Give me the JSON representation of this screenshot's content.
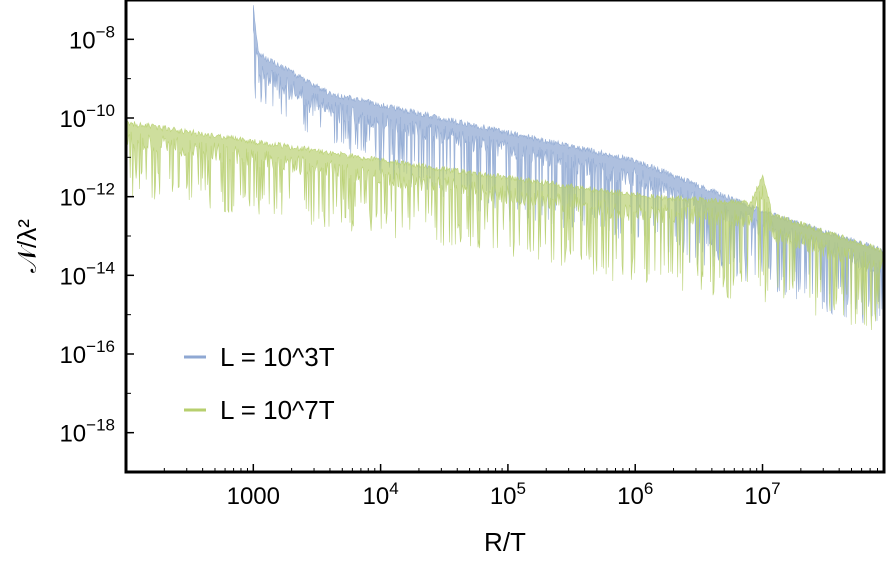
{
  "chart_data": {
    "type": "area",
    "xlabel": "R/T",
    "ylabel": "𝒩/λ²",
    "xscale": "log",
    "yscale": "log",
    "xlim": [
      100,
      90000000
    ],
    "ylim": [
      1e-19,
      1e-07
    ],
    "grid": false,
    "legend_position": "bottom-left",
    "x_ticks": [
      {
        "value": 1000,
        "label": "1000"
      },
      {
        "value": 10000,
        "base": "10",
        "exp": "4"
      },
      {
        "value": 100000,
        "base": "10",
        "exp": "5"
      },
      {
        "value": 1000000,
        "base": "10",
        "exp": "6"
      },
      {
        "value": 10000000,
        "base": "10",
        "exp": "7"
      }
    ],
    "y_ticks": [
      {
        "value": 1e-08,
        "base": "10",
        "exp": "−8"
      },
      {
        "value": 1e-10,
        "base": "10",
        "exp": "−10"
      },
      {
        "value": 1e-12,
        "base": "10",
        "exp": "−12"
      },
      {
        "value": 1e-14,
        "base": "10",
        "exp": "−14"
      },
      {
        "value": 1e-16,
        "base": "10",
        "exp": "−16"
      },
      {
        "value": 1e-18,
        "base": "10",
        "exp": "−18"
      }
    ],
    "series": [
      {
        "name": "L = 10^3T",
        "color": "#8fa8d3",
        "x_range": [
          1000,
          90000000
        ],
        "upper_envelope": {
          "x": [
            1000,
            1100,
            4000,
            8000,
            100000,
            1000000,
            10000000,
            90000000
          ],
          "y": [
            8e-08,
            5e-09,
            5e-10,
            3e-10,
            5e-11,
            1e-11,
            5e-13,
            5e-14
          ]
        },
        "lower_envelope": {
          "x": [
            1000,
            10000,
            100000,
            1000000,
            10000000,
            90000000
          ],
          "y": [
            3e-10,
            3e-12,
            2e-13,
            6e-14,
            5e-15,
            3e-16
          ]
        }
      },
      {
        "name": "L = 10^7T",
        "color": "#b7cf6e",
        "x_range": [
          100,
          90000000
        ],
        "upper_envelope": {
          "x": [
            100,
            10000,
            1000000,
            8000000,
            10000000,
            12000000,
            90000000
          ],
          "y": [
            9e-11,
            1e-11,
            1.3e-12,
            8e-13,
            4e-12,
            4e-13,
            5e-14
          ]
        },
        "lower_envelope": {
          "x": [
            100,
            10000,
            100000,
            1000000,
            10000000,
            90000000
          ],
          "y": [
            1e-12,
            1e-13,
            3e-14,
            5e-15,
            2e-15,
            3e-16
          ]
        }
      }
    ]
  }
}
